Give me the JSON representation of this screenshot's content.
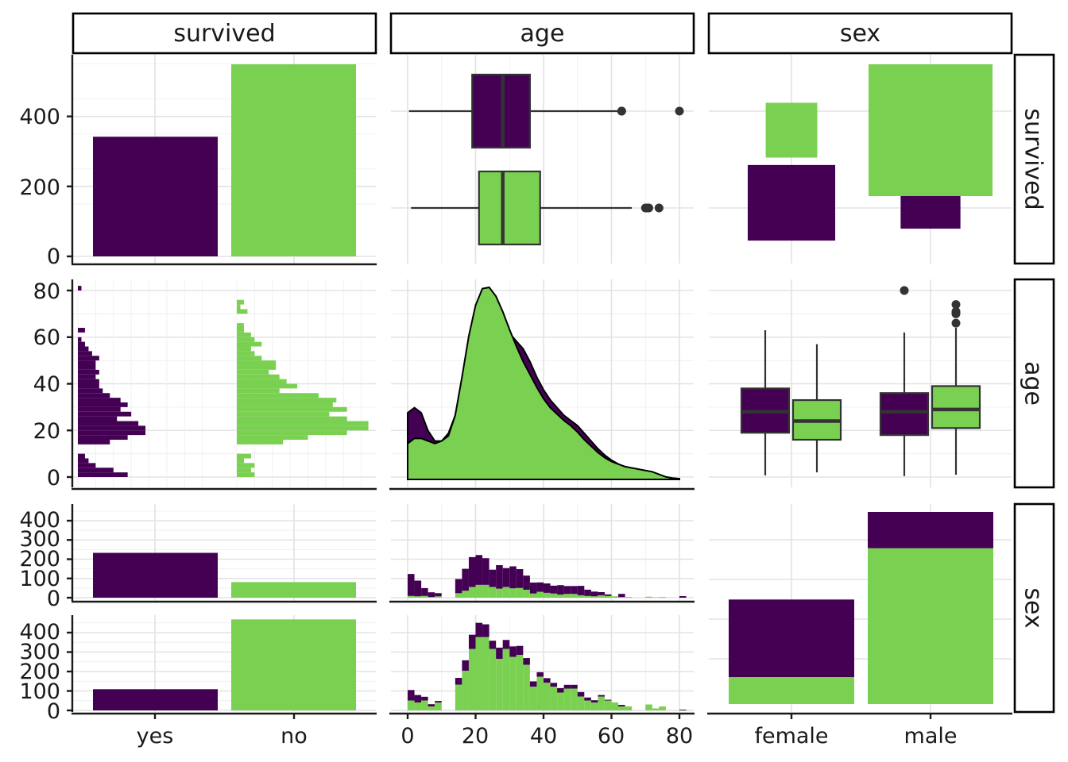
{
  "colors": {
    "yes": "#440154",
    "no": "#7AD151",
    "median": "#333333",
    "outlier": "#333333"
  },
  "chart_data": {
    "type": "pairs",
    "variables": [
      "survived",
      "age",
      "sex"
    ],
    "survived_levels": [
      "yes",
      "no"
    ],
    "sex_levels": [
      "female",
      "male"
    ],
    "survived_counts": {
      "yes": 342,
      "no": 549
    },
    "survived_axis": {
      "ylim": [
        0,
        549
      ],
      "ticks": [
        "0",
        "200",
        "400"
      ]
    },
    "age_axis": {
      "xlim": [
        0,
        80
      ],
      "ticks": [
        "0",
        "20",
        "40",
        "60",
        "80"
      ]
    },
    "age_by_survived_boxplot": [
      {
        "group": "yes",
        "min": 0.4,
        "q1": 19,
        "median": 28,
        "q3": 36,
        "max": 62,
        "outliers": [
          63,
          63,
          80
        ]
      },
      {
        "group": "no",
        "min": 1,
        "q1": 21,
        "median": 28,
        "q3": 39,
        "max": 66,
        "outliers": [
          70,
          70.5,
          71,
          74
        ]
      }
    ],
    "survived_by_sex_mosaic": [
      {
        "sex": "female",
        "sex_count": 314,
        "yes": 233,
        "no": 81
      },
      {
        "sex": "male",
        "sex_count": 577,
        "yes": 109,
        "no": 468
      }
    ],
    "age_histogram_by_survived": {
      "bin_width": 2,
      "bin_starts": [
        0,
        2,
        4,
        6,
        8,
        14,
        16,
        18,
        20,
        22,
        24,
        26,
        28,
        30,
        32,
        34,
        36,
        38,
        40,
        42,
        44,
        46,
        48,
        50,
        52,
        54,
        56,
        58,
        60,
        62,
        64,
        70,
        72,
        74,
        80
      ],
      "yes": [
        14,
        10,
        5,
        3,
        2,
        9,
        14,
        19,
        19,
        17,
        11,
        15,
        12,
        14,
        12,
        9,
        7,
        6,
        6,
        5,
        6,
        5,
        5,
        6,
        4,
        3,
        2,
        1,
        0,
        2,
        0,
        0,
        0,
        0,
        1
      ],
      "no": [
        5,
        4,
        5,
        2,
        4,
        13,
        20,
        31,
        37,
        37,
        31,
        26,
        31,
        27,
        28,
        23,
        12,
        17,
        14,
        12,
        9,
        11,
        11,
        7,
        5,
        4,
        7,
        5,
        4,
        2,
        2,
        3,
        1,
        2,
        0
      ]
    },
    "age_density_by_survived": {
      "x": [
        0,
        2,
        4,
        6,
        8,
        10,
        12,
        14,
        16,
        18,
        20,
        22,
        24,
        26,
        28,
        30,
        32,
        34,
        36,
        38,
        40,
        42,
        44,
        46,
        48,
        50,
        52,
        54,
        56,
        58,
        60,
        62,
        64,
        66,
        68,
        70,
        72,
        74,
        76,
        78,
        80
      ],
      "yes": [
        0.52,
        0.56,
        0.52,
        0.38,
        0.3,
        0.3,
        0.36,
        0.5,
        0.76,
        1.02,
        1.18,
        1.28,
        1.31,
        1.28,
        1.24,
        1.14,
        1.08,
        1.02,
        0.92,
        0.8,
        0.7,
        0.62,
        0.56,
        0.5,
        0.46,
        0.42,
        0.36,
        0.3,
        0.24,
        0.19,
        0.15,
        0.12,
        0.09,
        0.07,
        0.05,
        0.04,
        0.03,
        0.02,
        0.015,
        0.01,
        0.005
      ],
      "no": [
        0.28,
        0.32,
        0.32,
        0.3,
        0.28,
        0.3,
        0.34,
        0.5,
        0.8,
        1.12,
        1.36,
        1.49,
        1.5,
        1.43,
        1.31,
        1.17,
        1.04,
        0.92,
        0.82,
        0.72,
        0.63,
        0.56,
        0.51,
        0.46,
        0.42,
        0.37,
        0.31,
        0.26,
        0.21,
        0.17,
        0.14,
        0.12,
        0.1,
        0.09,
        0.08,
        0.07,
        0.06,
        0.04,
        0.02,
        0.01,
        0.005
      ]
    },
    "age_by_sex_boxplot": [
      {
        "sex": "female",
        "group": "yes",
        "min": 0.7,
        "q1": 19,
        "median": 28,
        "q3": 38,
        "max": 63,
        "outliers": []
      },
      {
        "sex": "female",
        "group": "no",
        "min": 2,
        "q1": 16,
        "median": 24,
        "q3": 33,
        "max": 57,
        "outliers": []
      },
      {
        "sex": "male",
        "group": "yes",
        "min": 0.4,
        "q1": 18,
        "median": 28,
        "q3": 36,
        "max": 62,
        "outliers": [
          80
        ]
      },
      {
        "sex": "male",
        "group": "no",
        "min": 1,
        "q1": 21,
        "median": 29,
        "q3": 39,
        "max": 64,
        "outliers": [
          66,
          70,
          70.5,
          71,
          74
        ]
      }
    ],
    "sex_axis": {
      "ylim": [
        0,
        480
      ],
      "ticks": [
        "0",
        "100",
        "200",
        "300",
        "400"
      ]
    }
  }
}
